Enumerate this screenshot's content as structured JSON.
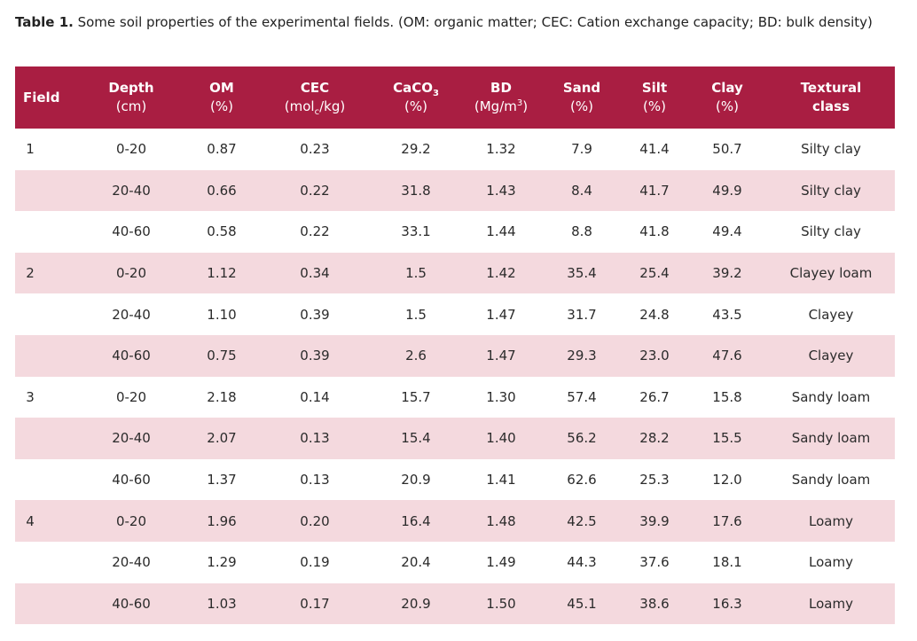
{
  "caption": {
    "label": "Table 1.",
    "text": " Some soil properties of the experimental fields. (OM: organic matter; CEC: Cation exchange capacity; BD: bulk density)"
  },
  "headers": {
    "field": "Field",
    "depth": "Depth",
    "depth_unit": "(cm)",
    "om": "OM",
    "om_unit": "(%)",
    "cec": "CEC",
    "cec_unit_a": "(mol",
    "cec_unit_sub": "c",
    "cec_unit_b": "/kg)",
    "caco_a": "CaCO",
    "caco_sub": "3",
    "caco_unit": "(%)",
    "bd": "BD",
    "bd_unit_a": "(Mg/m",
    "bd_unit_sup": "3",
    "bd_unit_b": ")",
    "sand": "Sand",
    "sand_unit": "(%)",
    "silt": "Silt",
    "silt_unit": "(%)",
    "clay": "Clay",
    "clay_unit": "(%)",
    "textural_a": "Textural",
    "textural_b": "class"
  },
  "rows": [
    {
      "field": "1",
      "depth": "0-20",
      "om": "0.87",
      "cec": "0.23",
      "caco3": "29.2",
      "bd": "1.32",
      "sand": "7.9",
      "silt": "41.4",
      "clay": "50.7",
      "texture": "Silty clay"
    },
    {
      "field": "",
      "depth": "20-40",
      "om": "0.66",
      "cec": "0.22",
      "caco3": "31.8",
      "bd": "1.43",
      "sand": "8.4",
      "silt": "41.7",
      "clay": "49.9",
      "texture": "Silty clay"
    },
    {
      "field": "",
      "depth": "40-60",
      "om": "0.58",
      "cec": "0.22",
      "caco3": "33.1",
      "bd": "1.44",
      "sand": "8.8",
      "silt": "41.8",
      "clay": "49.4",
      "texture": "Silty clay"
    },
    {
      "field": "2",
      "depth": "0-20",
      "om": "1.12",
      "cec": "0.34",
      "caco3": "1.5",
      "bd": "1.42",
      "sand": "35.4",
      "silt": "25.4",
      "clay": "39.2",
      "texture": "Clayey loam"
    },
    {
      "field": "",
      "depth": "20-40",
      "om": "1.10",
      "cec": "0.39",
      "caco3": "1.5",
      "bd": "1.47",
      "sand": "31.7",
      "silt": "24.8",
      "clay": "43.5",
      "texture": "Clayey"
    },
    {
      "field": "",
      "depth": "40-60",
      "om": "0.75",
      "cec": "0.39",
      "caco3": "2.6",
      "bd": "1.47",
      "sand": "29.3",
      "silt": "23.0",
      "clay": "47.6",
      "texture": "Clayey"
    },
    {
      "field": "3",
      "depth": "0-20",
      "om": "2.18",
      "cec": "0.14",
      "caco3": "15.7",
      "bd": "1.30",
      "sand": "57.4",
      "silt": "26.7",
      "clay": "15.8",
      "texture": "Sandy loam"
    },
    {
      "field": "",
      "depth": "20-40",
      "om": "2.07",
      "cec": "0.13",
      "caco3": "15.4",
      "bd": "1.40",
      "sand": "56.2",
      "silt": "28.2",
      "clay": "15.5",
      "texture": "Sandy loam"
    },
    {
      "field": "",
      "depth": "40-60",
      "om": "1.37",
      "cec": "0.13",
      "caco3": "20.9",
      "bd": "1.41",
      "sand": "62.6",
      "silt": "25.3",
      "clay": "12.0",
      "texture": "Sandy loam"
    },
    {
      "field": "4",
      "depth": "0-20",
      "om": "1.96",
      "cec": "0.20",
      "caco3": "16.4",
      "bd": "1.48",
      "sand": "42.5",
      "silt": "39.9",
      "clay": "17.6",
      "texture": "Loamy"
    },
    {
      "field": "",
      "depth": "20-40",
      "om": "1.29",
      "cec": "0.19",
      "caco3": "20.4",
      "bd": "1.49",
      "sand": "44.3",
      "silt": "37.6",
      "clay": "18.1",
      "texture": "Loamy"
    },
    {
      "field": "",
      "depth": "40-60",
      "om": "1.03",
      "cec": "0.17",
      "caco3": "20.9",
      "bd": "1.50",
      "sand": "45.1",
      "silt": "38.6",
      "clay": "16.3",
      "texture": "Loamy"
    }
  ],
  "colors": {
    "header_bg": "#a91e42",
    "header_text": "#ffffff",
    "shade_row": "#f4d9de"
  }
}
